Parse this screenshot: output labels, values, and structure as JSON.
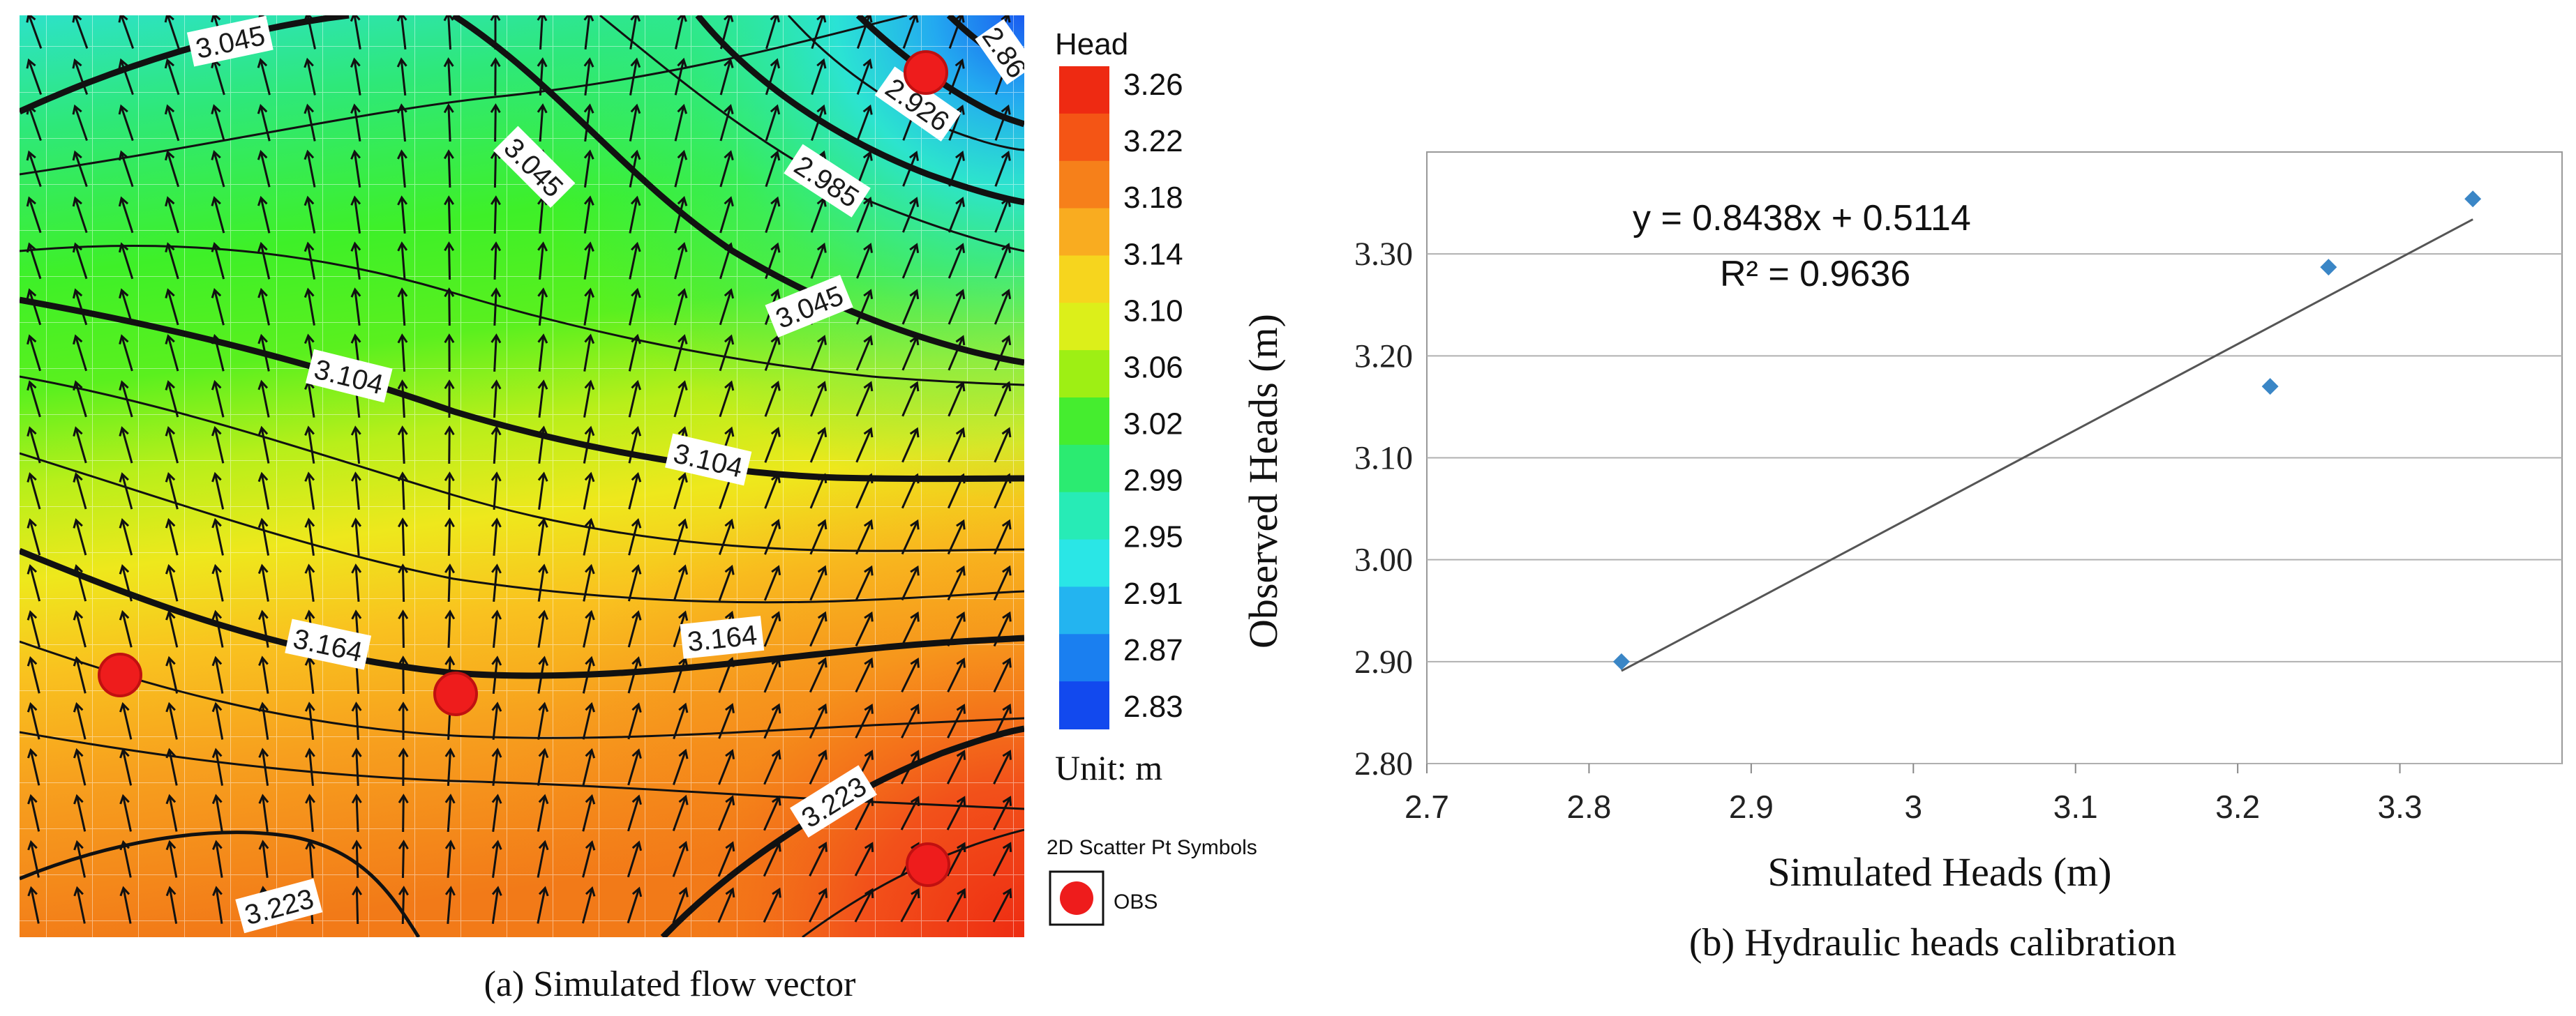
{
  "panel_a": {
    "caption": "(a) Simulated flow vector",
    "legend": {
      "title": "Head",
      "ticks": [
        "3.26",
        "3.22",
        "3.18",
        "3.14",
        "3.10",
        "3.06",
        "3.02",
        "2.99",
        "2.95",
        "2.91",
        "2.87",
        "2.83"
      ],
      "colors": [
        "#ee2a12",
        "#f45515",
        "#f6801a",
        "#f9ac20",
        "#f6d51e",
        "#dcef1a",
        "#9eef14",
        "#45ed2f",
        "#2beb71",
        "#27ebb6",
        "#2ae6e6",
        "#23b4f0",
        "#1a7ff0",
        "#1249ee"
      ],
      "unit": "Unit: m"
    },
    "scatter_legend": {
      "title": "2D Scatter Pt Symbols",
      "label": "OBS"
    },
    "contour_labels": [
      "3.045",
      "3.045",
      "3.045",
      "2.985",
      "2.926",
      "2.86",
      "3.104",
      "3.104",
      "3.164",
      "3.164",
      "3.223",
      "3.223"
    ]
  },
  "panel_b": {
    "caption": "(b) Hydraulic heads calibration",
    "equation": "y = 0.8438x + 0.5114",
    "r2": "R² = 0.9636",
    "marker_color": "#3a86c6"
  },
  "chart_data": [
    {
      "type": "heatmap",
      "title": "Head",
      "unit": "m",
      "value_range": [
        2.83,
        3.26
      ],
      "color_ticks": [
        3.26,
        3.22,
        3.18,
        3.14,
        3.1,
        3.06,
        3.02,
        2.99,
        2.95,
        2.91,
        2.87,
        2.83
      ],
      "contours": [
        {
          "level": 3.223,
          "major": true
        },
        {
          "level": 3.164,
          "major": true
        },
        {
          "level": 3.104,
          "major": true
        },
        {
          "level": 3.045,
          "major": true
        },
        {
          "level": 2.985,
          "major": true
        },
        {
          "level": 2.926,
          "major": true
        },
        {
          "level": 2.86,
          "major": true
        }
      ],
      "series_legend": [
        "OBS"
      ]
    },
    {
      "type": "scatter",
      "xlabel": "Simulated Heads (m)",
      "ylabel": "Observed Heads (m)",
      "xlim": [
        2.7,
        3.4
      ],
      "ylim": [
        2.8,
        3.4
      ],
      "xticks": [
        "2.7",
        "2.8",
        "2.9",
        "3",
        "3.1",
        "3.2",
        "3.3"
      ],
      "yticks": [
        "2.80",
        "2.90",
        "3.00",
        "3.10",
        "3.20",
        "3.30"
      ],
      "points": [
        {
          "x": 2.82,
          "y": 2.9
        },
        {
          "x": 3.22,
          "y": 3.17
        },
        {
          "x": 3.256,
          "y": 3.287
        },
        {
          "x": 3.345,
          "y": 3.354
        }
      ],
      "trendline": {
        "slope": 0.8438,
        "intercept": 0.5114,
        "x_from": 2.82,
        "x_to": 3.345
      }
    }
  ]
}
